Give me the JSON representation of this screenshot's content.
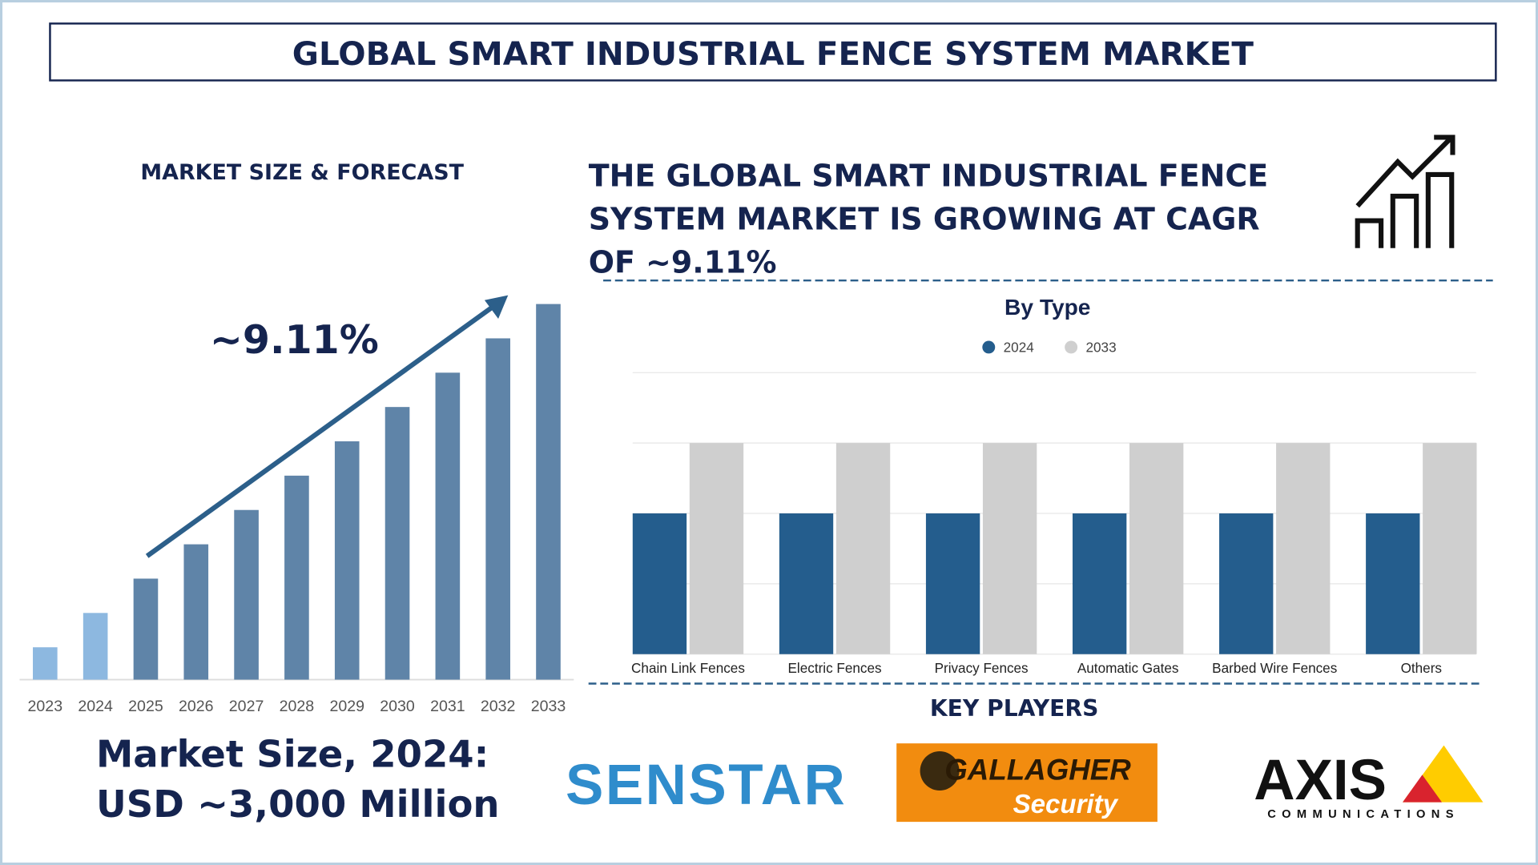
{
  "title": "GLOBAL SMART INDUSTRIAL FENCE SYSTEM MARKET",
  "forecast_heading": "MARKET SIZE & FORECAST",
  "headline_lines": [
    "THE GLOBAL SMART INDUSTRIAL FENCE",
    "SYSTEM MARKET IS GROWING AT CAGR",
    "OF ~9.11%"
  ],
  "market_size_lines": [
    "Market Size, 2024:",
    "USD ~3,000 Million"
  ],
  "key_players": {
    "heading": "KEY PLAYERS",
    "players": [
      {
        "name": "SENSTAR"
      },
      {
        "name": "GALLAGHER",
        "tagline": "Security"
      },
      {
        "name": "AXIS",
        "tagline": "COMMUNICATIONS"
      }
    ]
  },
  "chart_data": [
    {
      "type": "bar",
      "annotation": "~9.11%",
      "categories": [
        "2023",
        "2024",
        "2025",
        "2026",
        "2027",
        "2028",
        "2029",
        "2030",
        "2031",
        "2032",
        "2033"
      ],
      "values": [
        33,
        68,
        103,
        138,
        173,
        208,
        243,
        278,
        313,
        348,
        383
      ],
      "colors": [
        "#8db8e0",
        "#8db8e0",
        "#5f84a8",
        "#5f84a8",
        "#5f84a8",
        "#5f84a8",
        "#5f84a8",
        "#5f84a8",
        "#5f84a8",
        "#5f84a8",
        "#5f84a8"
      ],
      "ylim": [
        0,
        400
      ]
    },
    {
      "type": "grouped-bar",
      "title": "By Type",
      "categories": [
        "Chain Link Fences",
        "Electric Fences",
        "Privacy Fences",
        "Automatic Gates",
        "Barbed Wire Fences",
        "Others"
      ],
      "series": [
        {
          "name": "2024",
          "color": "#245d8d",
          "values": [
            2,
            2,
            2,
            2,
            2,
            2
          ]
        },
        {
          "name": "2033",
          "color": "#cfcfcf",
          "values": [
            3,
            3,
            3,
            3,
            3,
            3
          ]
        }
      ],
      "ylim": [
        0,
        4
      ],
      "yticks": [
        0,
        1,
        2,
        3,
        4
      ],
      "grid": true,
      "show_tick_labels": false,
      "legend": "top"
    }
  ]
}
